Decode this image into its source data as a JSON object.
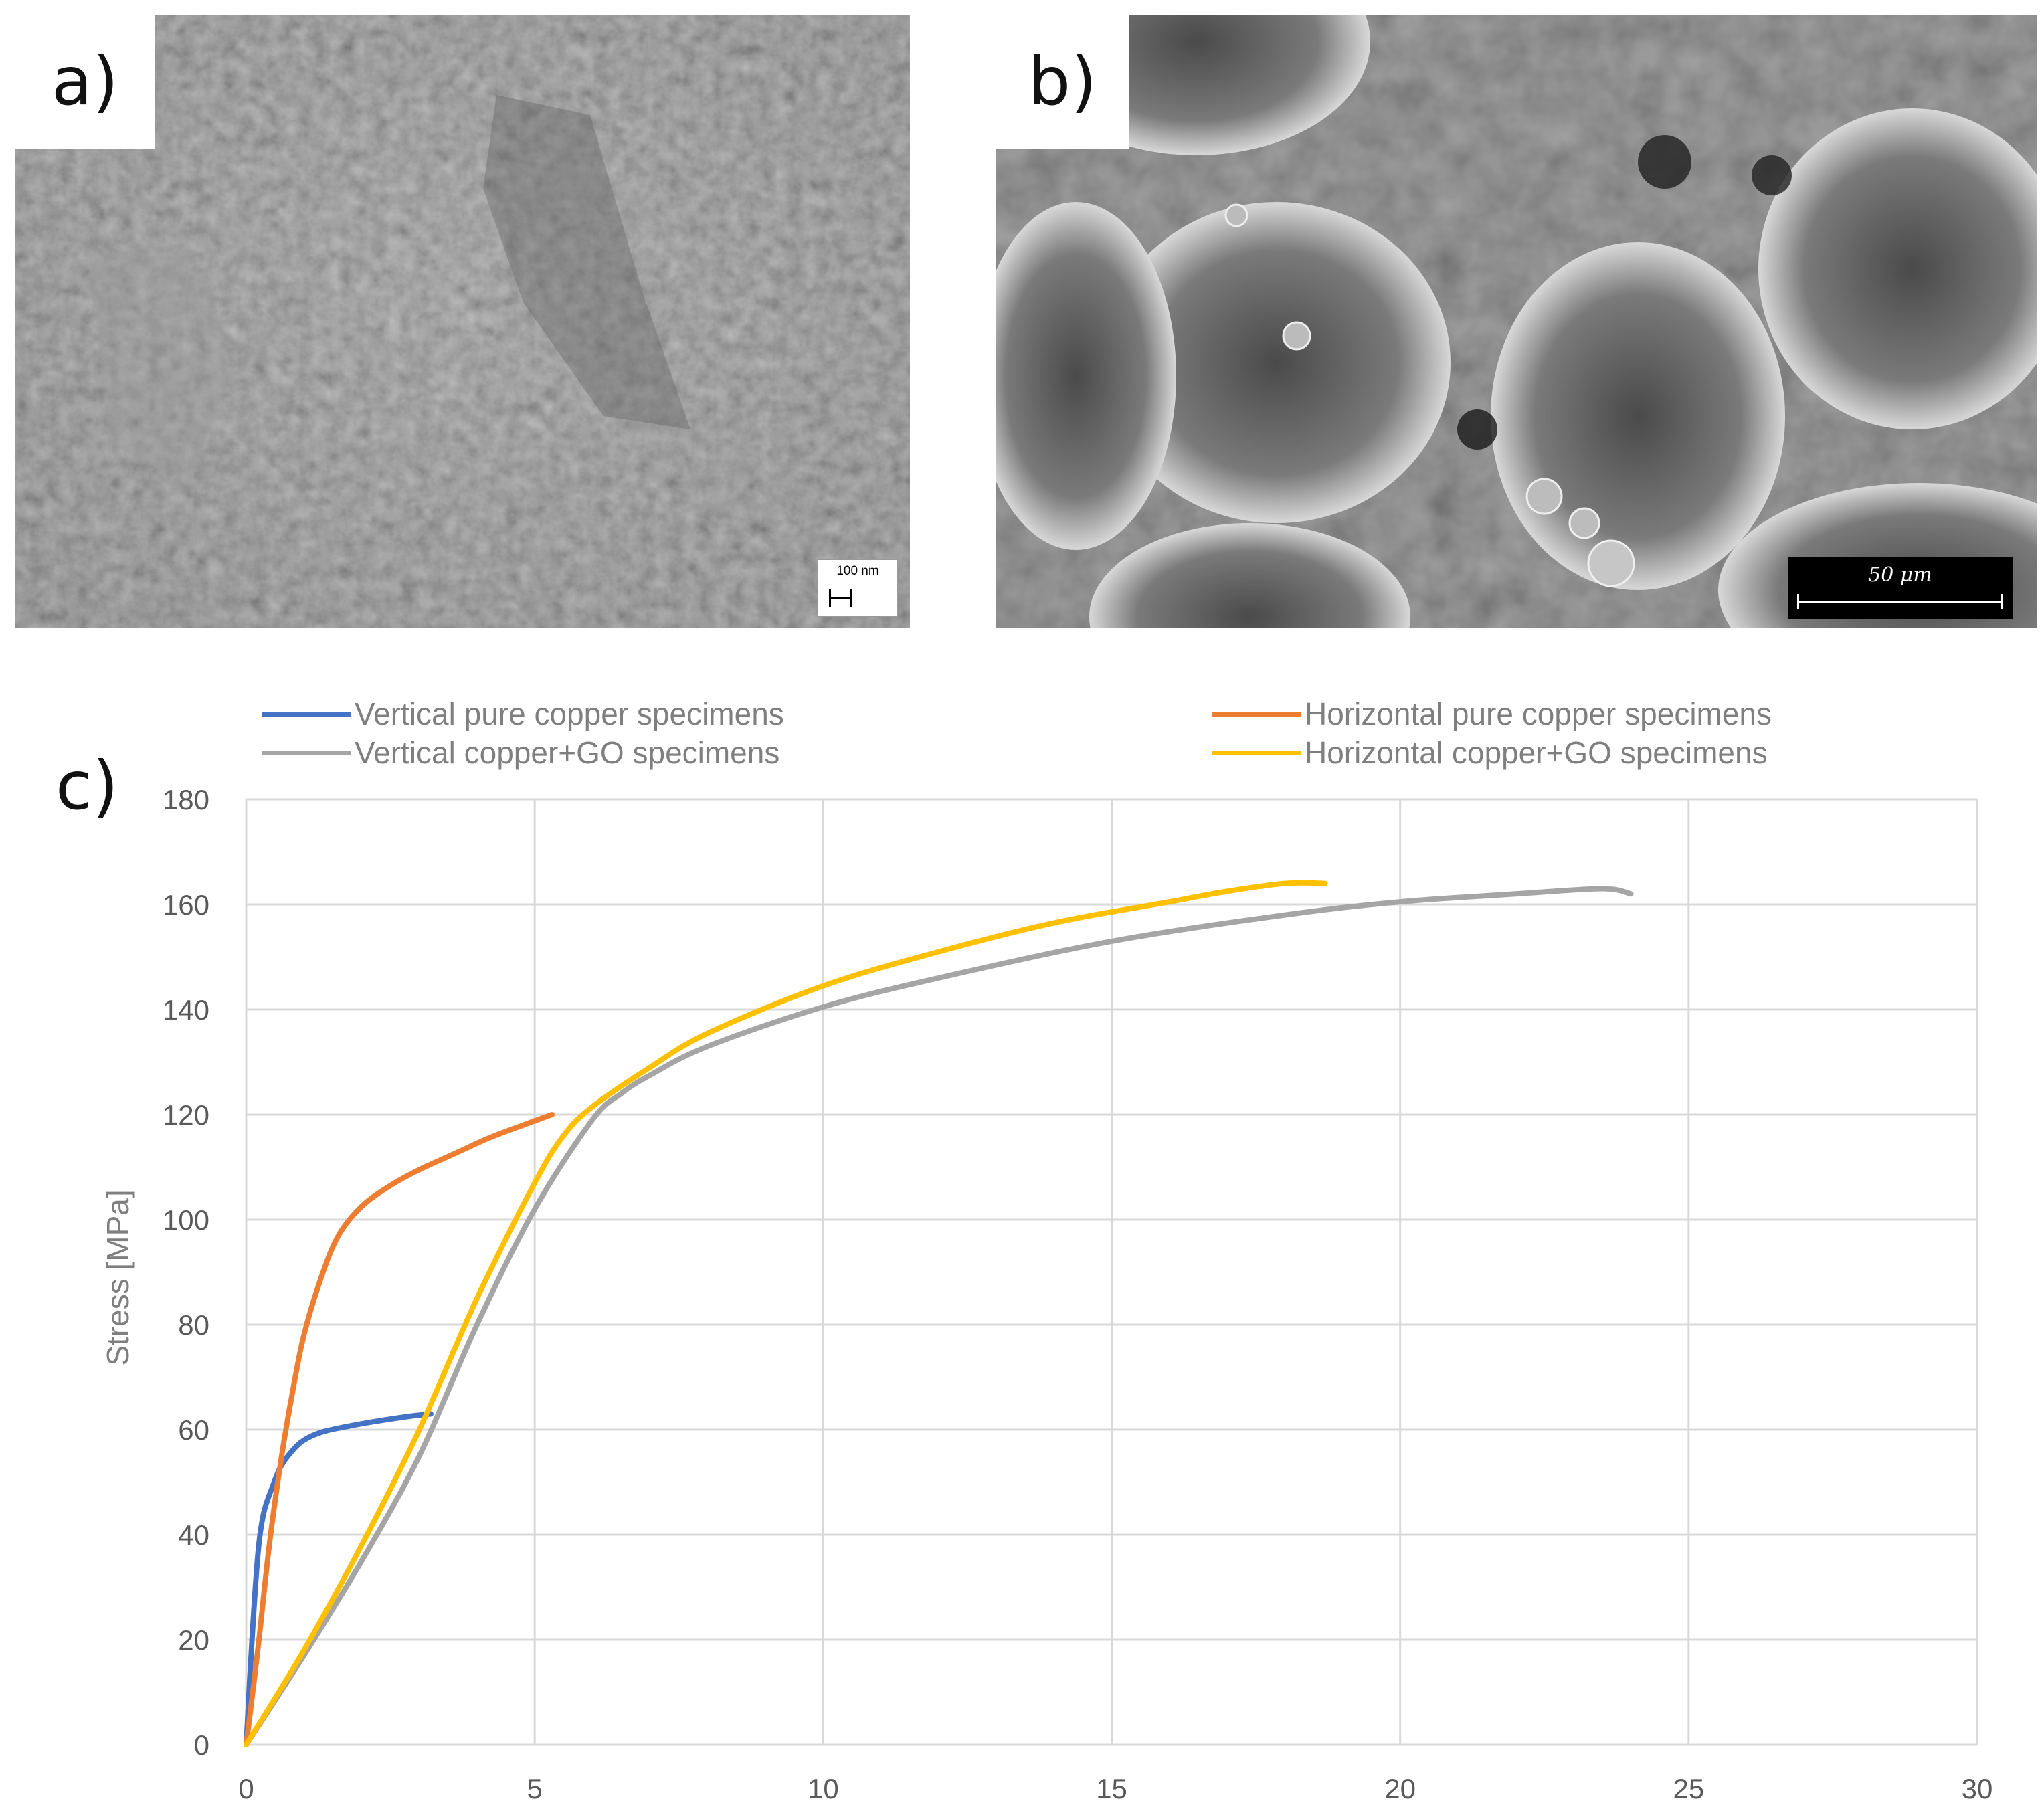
{
  "panels": [
    {
      "letter": "a)",
      "scale_bar": "100 nm"
    },
    {
      "letter": "b)",
      "scale_bar": "50 μm"
    },
    {
      "letter": "c)"
    }
  ],
  "chart_data": {
    "type": "line",
    "title": "",
    "xlabel": "",
    "ylabel": "Stress [MPa]",
    "xlim": [
      0,
      30
    ],
    "ylim": [
      0,
      180
    ],
    "x_ticks": [
      0,
      5,
      10,
      15,
      20,
      25,
      30
    ],
    "y_ticks": [
      0,
      20,
      40,
      60,
      80,
      100,
      120,
      140,
      160,
      180
    ],
    "grid": true,
    "legend_position": "top",
    "series": [
      {
        "name": "Vertical pure copper specimens",
        "color": "#4472c4",
        "x": [
          0,
          0.1,
          0.2,
          0.3,
          0.45,
          0.6,
          0.8,
          1.0,
          1.3,
          1.7,
          2.2,
          2.8,
          3.2
        ],
        "y": [
          0,
          20,
          36,
          44,
          49,
          53,
          56,
          58,
          59.5,
          60.5,
          61.5,
          62.5,
          63
        ]
      },
      {
        "name": "Horizontal pure copper specimens",
        "color": "#ed7d31",
        "x": [
          0,
          0.2,
          0.4,
          0.6,
          0.8,
          1.0,
          1.3,
          1.6,
          2.0,
          2.5,
          3.0,
          3.6,
          4.2,
          4.8,
          5.3
        ],
        "y": [
          0,
          18,
          38,
          54,
          67,
          78,
          89,
          97,
          102.5,
          106.5,
          109.5,
          112.5,
          115.5,
          118,
          120
        ]
      },
      {
        "name": "Vertical copper+GO specimens",
        "color": "#a5a5a5",
        "x": [
          0,
          1,
          2,
          3,
          4,
          5,
          6,
          6.5,
          7,
          8,
          10,
          12,
          15,
          18,
          20,
          22,
          23.5,
          24
        ],
        "y": [
          0,
          17,
          35,
          55,
          80,
          102,
          119,
          124,
          127.5,
          133,
          140.5,
          146,
          153,
          158,
          160.5,
          162,
          163,
          162
        ]
      },
      {
        "name": "Horizontal copper+GO specimens",
        "color": "#ffc000",
        "x": [
          0,
          1,
          2,
          3,
          4,
          5,
          5.5,
          6,
          7,
          8,
          10,
          12,
          14,
          16,
          17,
          18,
          18.7
        ],
        "y": [
          0,
          18,
          38,
          60,
          85,
          107,
          116,
          121.5,
          129,
          135.5,
          144.5,
          151,
          156.5,
          160.5,
          162.5,
          164,
          164
        ]
      }
    ]
  }
}
